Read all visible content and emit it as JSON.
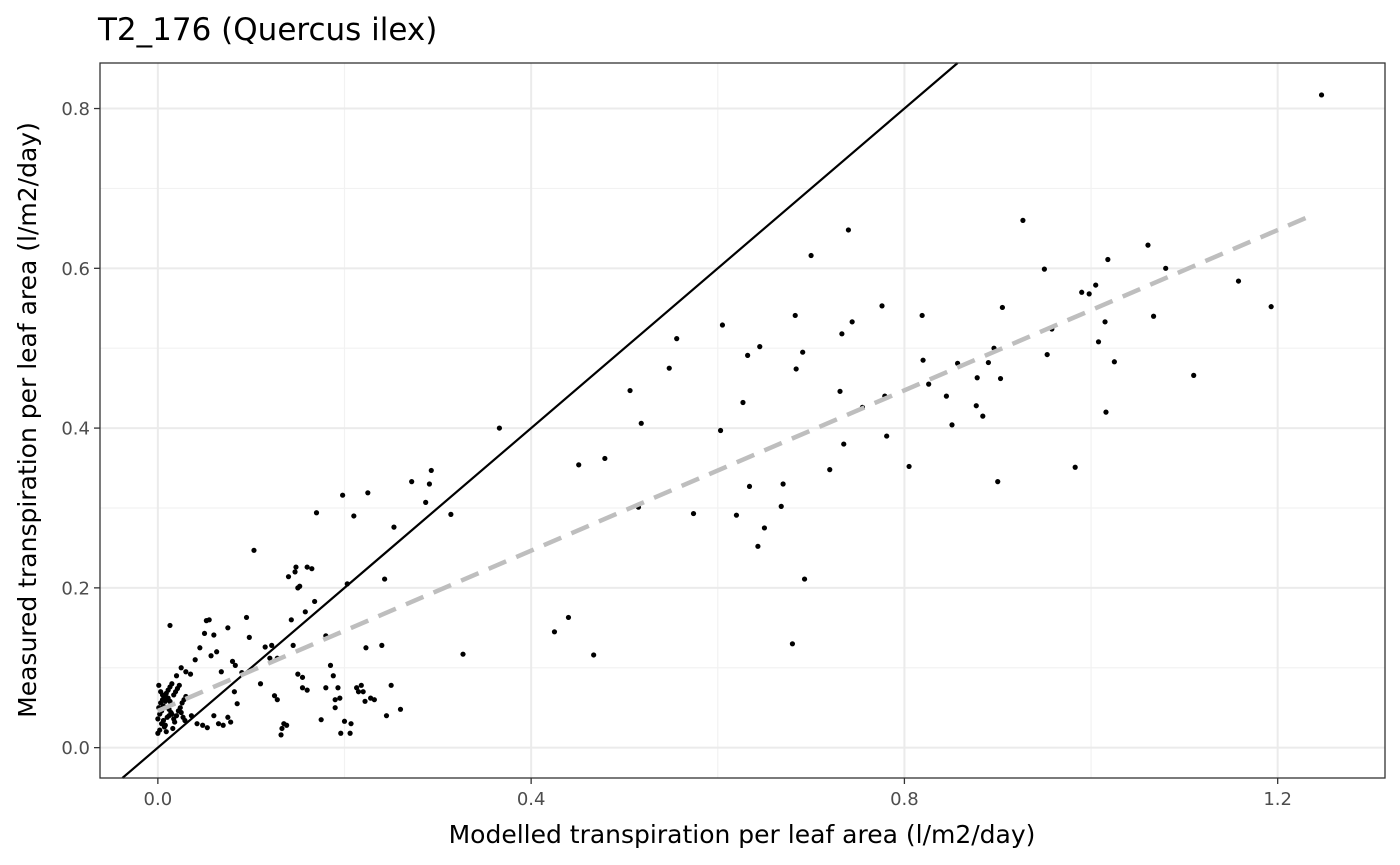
{
  "chart_data": {
    "type": "scatter",
    "title": "T2_176 (Quercus ilex)",
    "xlabel": "Modelled transpiration per leaf area (l/m2/day)",
    "ylabel": "Measured transpiration per leaf area (l/m2/day)",
    "xlim": [
      -0.062,
      1.315
    ],
    "ylim": [
      -0.038,
      0.857
    ],
    "x_ticks": [
      0.0,
      0.4,
      0.8,
      1.2
    ],
    "x_tick_labels": [
      "0.0",
      "0.4",
      "0.8",
      "1.2"
    ],
    "x_minor_ticks": [
      0.2,
      0.6,
      1.0
    ],
    "y_ticks": [
      0.0,
      0.2,
      0.4,
      0.6,
      0.8
    ],
    "y_tick_labels": [
      "0.0",
      "0.2",
      "0.4",
      "0.6",
      "0.8"
    ],
    "y_minor_ticks": [
      0.1,
      0.3,
      0.5,
      0.7
    ],
    "grid": true,
    "legend": "none",
    "point_color": "#000000",
    "identity_line": {
      "slope": 1,
      "intercept": 0,
      "color": "#000000"
    },
    "fit_line": {
      "x0": 0.0,
      "y0": 0.046,
      "x1": 1.23,
      "y1": 0.663,
      "color": "#bebebe",
      "style": "dashed"
    },
    "points": [
      [
        0.0,
        0.018
      ],
      [
        0.002,
        0.022
      ],
      [
        0.004,
        0.03
      ],
      [
        0.006,
        0.034
      ],
      [
        0.008,
        0.028
      ],
      [
        0.01,
        0.038
      ],
      [
        0.012,
        0.04
      ],
      [
        0.014,
        0.044
      ],
      [
        0.001,
        0.05
      ],
      [
        0.003,
        0.056
      ],
      [
        0.005,
        0.06
      ],
      [
        0.007,
        0.064
      ],
      [
        0.009,
        0.068
      ],
      [
        0.011,
        0.072
      ],
      [
        0.013,
        0.076
      ],
      [
        0.015,
        0.08
      ],
      [
        0.0,
        0.036
      ],
      [
        0.002,
        0.042
      ],
      [
        0.004,
        0.046
      ],
      [
        0.006,
        0.052
      ],
      [
        0.008,
        0.058
      ],
      [
        0.01,
        0.062
      ],
      [
        0.012,
        0.048
      ],
      [
        0.014,
        0.054
      ],
      [
        0.016,
        0.024
      ],
      [
        0.018,
        0.032
      ],
      [
        0.02,
        0.04
      ],
      [
        0.022,
        0.046
      ],
      [
        0.024,
        0.05
      ],
      [
        0.026,
        0.056
      ],
      [
        0.028,
        0.06
      ],
      [
        0.03,
        0.064
      ],
      [
        0.017,
        0.066
      ],
      [
        0.019,
        0.07
      ],
      [
        0.021,
        0.074
      ],
      [
        0.023,
        0.078
      ],
      [
        0.025,
        0.044
      ],
      [
        0.027,
        0.038
      ],
      [
        0.029,
        0.034
      ],
      [
        0.001,
        0.078
      ],
      [
        0.003,
        0.07
      ],
      [
        0.005,
        0.066
      ],
      [
        0.007,
        0.026
      ],
      [
        0.009,
        0.02
      ],
      [
        0.011,
        0.062
      ],
      [
        0.013,
        0.058
      ],
      [
        0.015,
        0.042
      ],
      [
        0.017,
        0.036
      ],
      [
        0.013,
        0.153
      ],
      [
        0.02,
        0.09
      ],
      [
        0.025,
        0.1
      ],
      [
        0.03,
        0.095
      ],
      [
        0.035,
        0.092
      ],
      [
        0.04,
        0.11
      ],
      [
        0.045,
        0.125
      ],
      [
        0.05,
        0.143
      ],
      [
        0.052,
        0.159
      ],
      [
        0.055,
        0.16
      ],
      [
        0.057,
        0.115
      ],
      [
        0.06,
        0.141
      ],
      [
        0.063,
        0.12
      ],
      [
        0.068,
        0.095
      ],
      [
        0.075,
        0.15
      ],
      [
        0.08,
        0.108
      ],
      [
        0.083,
        0.103
      ],
      [
        0.09,
        0.094
      ],
      [
        0.095,
        0.163
      ],
      [
        0.098,
        0.138
      ],
      [
        0.103,
        0.247
      ],
      [
        0.11,
        0.08
      ],
      [
        0.115,
        0.126
      ],
      [
        0.12,
        0.112
      ],
      [
        0.125,
        0.065
      ],
      [
        0.128,
        0.06
      ],
      [
        0.133,
        0.024
      ],
      [
        0.135,
        0.03
      ],
      [
        0.138,
        0.028
      ],
      [
        0.14,
        0.214
      ],
      [
        0.143,
        0.16
      ],
      [
        0.147,
        0.22
      ],
      [
        0.148,
        0.226
      ],
      [
        0.15,
        0.2
      ],
      [
        0.152,
        0.202
      ],
      [
        0.155,
        0.075
      ],
      [
        0.158,
        0.17
      ],
      [
        0.16,
        0.226
      ],
      [
        0.165,
        0.224
      ],
      [
        0.168,
        0.183
      ],
      [
        0.17,
        0.294
      ],
      [
        0.175,
        0.035
      ],
      [
        0.18,
        0.14
      ],
      [
        0.185,
        0.103
      ],
      [
        0.188,
        0.09
      ],
      [
        0.19,
        0.06
      ],
      [
        0.193,
        0.075
      ],
      [
        0.196,
        0.018
      ],
      [
        0.198,
        0.316
      ],
      [
        0.2,
        0.033
      ],
      [
        0.203,
        0.205
      ],
      [
        0.206,
        0.018
      ],
      [
        0.21,
        0.29
      ],
      [
        0.213,
        0.075
      ],
      [
        0.218,
        0.078
      ],
      [
        0.22,
        0.07
      ],
      [
        0.223,
        0.125
      ],
      [
        0.225,
        0.319
      ],
      [
        0.228,
        0.062
      ],
      [
        0.232,
        0.06
      ],
      [
        0.24,
        0.128
      ],
      [
        0.243,
        0.211
      ],
      [
        0.245,
        0.04
      ],
      [
        0.25,
        0.078
      ],
      [
        0.253,
        0.276
      ],
      [
        0.26,
        0.048
      ],
      [
        0.272,
        0.333
      ],
      [
        0.287,
        0.307
      ],
      [
        0.291,
        0.33
      ],
      [
        0.293,
        0.347
      ],
      [
        0.314,
        0.292
      ],
      [
        0.327,
        0.117
      ],
      [
        0.122,
        0.128
      ],
      [
        0.128,
        0.112
      ],
      [
        0.132,
        0.016
      ],
      [
        0.145,
        0.128
      ],
      [
        0.15,
        0.092
      ],
      [
        0.155,
        0.088
      ],
      [
        0.16,
        0.072
      ],
      [
        0.18,
        0.075
      ],
      [
        0.19,
        0.05
      ],
      [
        0.195,
        0.062
      ],
      [
        0.207,
        0.03
      ],
      [
        0.215,
        0.07
      ],
      [
        0.222,
        0.058
      ],
      [
        0.06,
        0.04
      ],
      [
        0.065,
        0.03
      ],
      [
        0.07,
        0.028
      ],
      [
        0.075,
        0.038
      ],
      [
        0.078,
        0.032
      ],
      [
        0.082,
        0.07
      ],
      [
        0.085,
        0.055
      ],
      [
        0.036,
        0.04
      ],
      [
        0.042,
        0.03
      ],
      [
        0.048,
        0.028
      ],
      [
        0.053,
        0.025
      ],
      [
        0.366,
        0.4
      ],
      [
        0.425,
        0.145
      ],
      [
        0.44,
        0.163
      ],
      [
        0.451,
        0.354
      ],
      [
        0.467,
        0.116
      ],
      [
        0.479,
        0.362
      ],
      [
        0.506,
        0.447
      ],
      [
        0.515,
        0.301
      ],
      [
        0.518,
        0.406
      ],
      [
        0.548,
        0.475
      ],
      [
        0.556,
        0.512
      ],
      [
        0.574,
        0.293
      ],
      [
        0.603,
        0.397
      ],
      [
        0.605,
        0.529
      ],
      [
        0.62,
        0.291
      ],
      [
        0.627,
        0.432
      ],
      [
        0.632,
        0.491
      ],
      [
        0.634,
        0.327
      ],
      [
        0.643,
        0.252
      ],
      [
        0.645,
        0.502
      ],
      [
        0.65,
        0.275
      ],
      [
        0.668,
        0.302
      ],
      [
        0.67,
        0.33
      ],
      [
        0.68,
        0.13
      ],
      [
        0.683,
        0.541
      ],
      [
        0.684,
        0.474
      ],
      [
        0.691,
        0.495
      ],
      [
        0.693,
        0.211
      ],
      [
        0.7,
        0.616
      ],
      [
        0.72,
        0.348
      ],
      [
        0.731,
        0.446
      ],
      [
        0.733,
        0.518
      ],
      [
        0.735,
        0.38
      ],
      [
        0.74,
        0.648
      ],
      [
        0.744,
        0.533
      ],
      [
        0.755,
        0.426
      ],
      [
        0.776,
        0.553
      ],
      [
        0.779,
        0.44
      ],
      [
        0.781,
        0.39
      ],
      [
        0.805,
        0.352
      ],
      [
        0.819,
        0.541
      ],
      [
        0.82,
        0.485
      ],
      [
        0.826,
        0.455
      ],
      [
        0.845,
        0.44
      ],
      [
        0.851,
        0.404
      ],
      [
        0.857,
        0.481
      ],
      [
        0.877,
        0.428
      ],
      [
        0.878,
        0.463
      ],
      [
        0.884,
        0.415
      ],
      [
        0.89,
        0.482
      ],
      [
        0.896,
        0.5
      ],
      [
        0.9,
        0.333
      ],
      [
        0.903,
        0.462
      ],
      [
        0.905,
        0.551
      ],
      [
        0.927,
        0.66
      ],
      [
        0.95,
        0.599
      ],
      [
        0.953,
        0.492
      ],
      [
        0.958,
        0.524
      ],
      [
        0.983,
        0.351
      ],
      [
        0.99,
        0.57
      ],
      [
        0.998,
        0.568
      ],
      [
        1.005,
        0.579
      ],
      [
        1.008,
        0.508
      ],
      [
        1.015,
        0.533
      ],
      [
        1.016,
        0.42
      ],
      [
        1.018,
        0.611
      ],
      [
        1.025,
        0.483
      ],
      [
        1.061,
        0.629
      ],
      [
        1.067,
        0.54
      ],
      [
        1.08,
        0.6
      ],
      [
        1.11,
        0.466
      ],
      [
        1.158,
        0.584
      ],
      [
        1.193,
        0.552
      ],
      [
        1.247,
        0.817
      ]
    ]
  }
}
